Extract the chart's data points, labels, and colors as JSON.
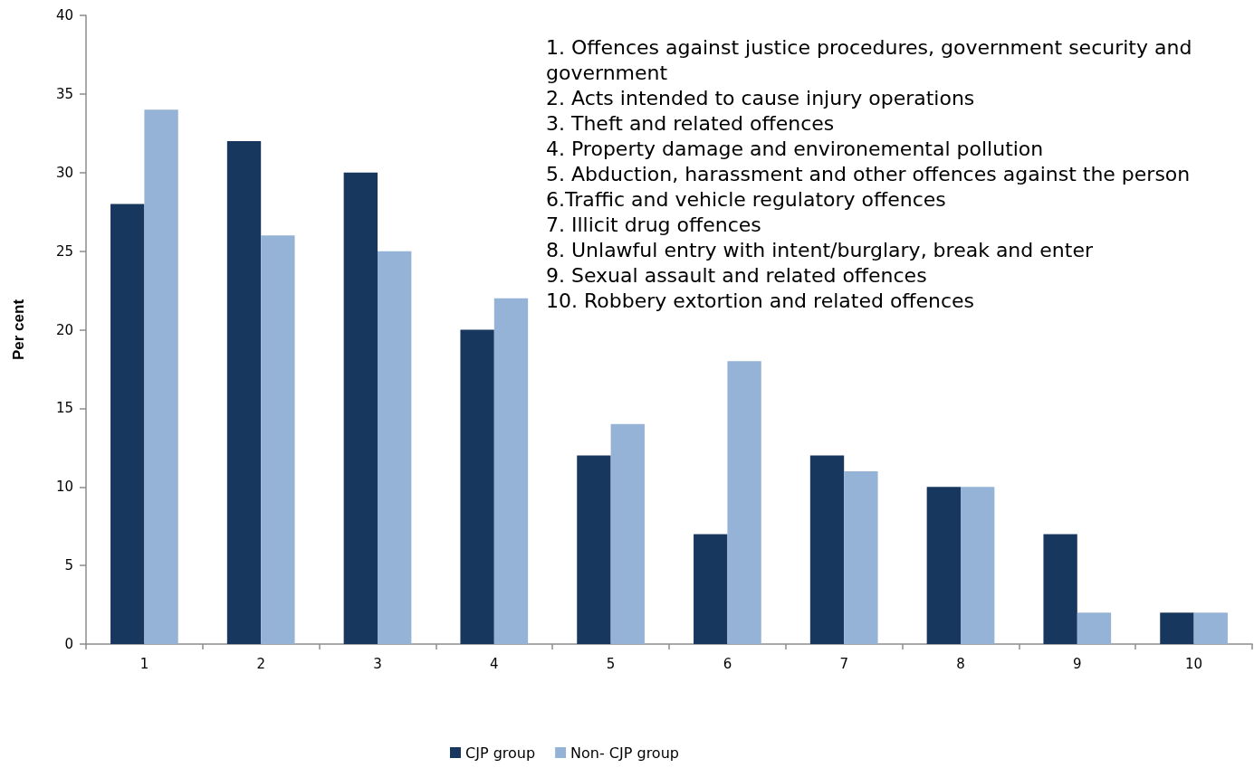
{
  "chart_data": {
    "type": "bar",
    "ylabel": "Per cent",
    "categories": [
      "1",
      "2",
      "3",
      "4",
      "5",
      "6",
      "7",
      "8",
      "9",
      "10"
    ],
    "series": [
      {
        "name": "CJP group",
        "color": "#17375e",
        "values": [
          28,
          32,
          30,
          20,
          12,
          7,
          12,
          10,
          7,
          2
        ]
      },
      {
        "name": "Non- CJP group",
        "color": "#95b3d7",
        "values": [
          34,
          26,
          25,
          22,
          14,
          18,
          11,
          10,
          2,
          2
        ]
      }
    ],
    "ylim": [
      0,
      40
    ],
    "yticks": [
      0,
      5,
      10,
      15,
      20,
      25,
      30,
      35,
      40
    ],
    "legend": "bottom",
    "annotations": [
      "1. Offences against justice procedures, government security and government",
      "2. Acts intended to cause injury operations",
      "3. Theft and related offences",
      "4. Property damage and environemental pollution",
      "5. Abduction, harassment and other offences against the person",
      "6.Traffic and vehicle regulatory offences",
      "7. Illicit drug offences",
      "8. Unlawful entry with intent/burglary, break and enter",
      "9. Sexual assault and related offences",
      "10. Robbery extortion and related offences"
    ]
  }
}
